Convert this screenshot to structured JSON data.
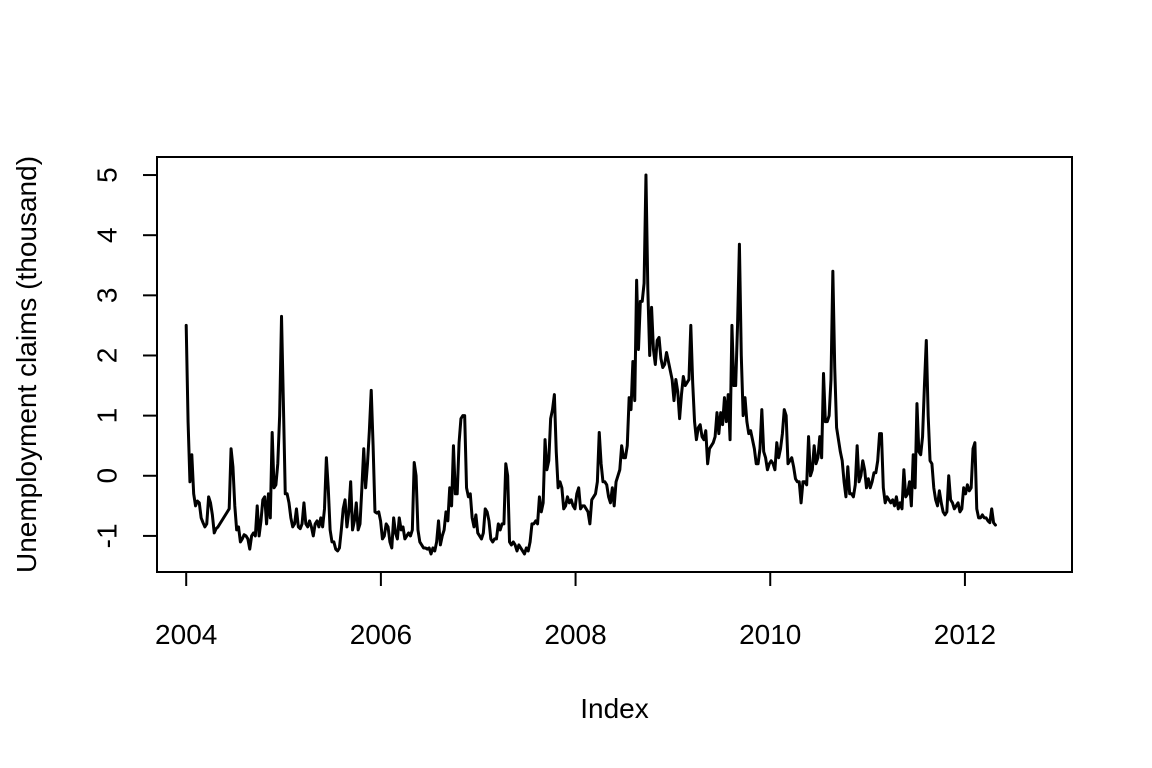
{
  "chart_data": {
    "type": "line",
    "title": "",
    "xlabel": "Index",
    "ylabel": "Unemployment claims (thousand)",
    "xlim": [
      2003.7,
      2013.1
    ],
    "ylim": [
      -1.6,
      5.3
    ],
    "x_ticks": [
      2004,
      2006,
      2008,
      2010,
      2012
    ],
    "x_tick_labels": [
      "2004",
      "2006",
      "2008",
      "2010",
      "2012"
    ],
    "y_ticks": [
      -1,
      0,
      1,
      2,
      3,
      4,
      5
    ],
    "y_tick_labels": [
      "-1",
      "0",
      "1",
      "2",
      "3",
      "4",
      "5"
    ],
    "grid": false,
    "line_color": "#000000",
    "series": [
      {
        "x_start": 2004.0,
        "x_step": 0.0192,
        "values": [
          2.5,
          0.9,
          -0.1,
          0.35,
          -0.3,
          -0.5,
          -0.42,
          -0.45,
          -0.7,
          -0.78,
          -0.85,
          -0.8,
          -0.35,
          -0.45,
          -0.65,
          -0.95,
          -0.88,
          -0.85,
          -0.8,
          -0.75,
          -0.7,
          -0.65,
          -0.6,
          -0.55,
          0.45,
          0.15,
          -0.5,
          -0.9,
          -0.85,
          -1.1,
          -1.05,
          -0.98,
          -1.0,
          -1.05,
          -1.22,
          -1.0,
          -0.95,
          -1.0,
          -0.5,
          -1.0,
          -0.75,
          -0.4,
          -0.35,
          -0.8,
          -0.3,
          -0.7,
          0.72,
          -0.2,
          -0.15,
          0.2,
          1.0,
          2.65,
          1.2,
          -0.3,
          -0.3,
          -0.45,
          -0.7,
          -0.85,
          -0.8,
          -0.55,
          -0.85,
          -0.88,
          -0.8,
          -0.45,
          -0.8,
          -0.85,
          -0.75,
          -0.85,
          -1.0,
          -0.8,
          -0.75,
          -0.85,
          -0.7,
          -0.85,
          -0.55,
          0.3,
          -0.2,
          -0.9,
          -1.1,
          -1.1,
          -1.22,
          -1.25,
          -1.2,
          -0.9,
          -0.55,
          -0.4,
          -0.85,
          -0.6,
          -0.1,
          -0.9,
          -0.75,
          -0.45,
          -0.9,
          -0.8,
          -0.2,
          0.45,
          -0.2,
          0.2,
          0.75,
          1.42,
          0.5,
          -0.6,
          -0.62,
          -0.6,
          -0.75,
          -1.05,
          -1.0,
          -0.8,
          -0.85,
          -1.1,
          -1.2,
          -0.7,
          -0.95,
          -1.05,
          -0.7,
          -0.9,
          -0.85,
          -1.05,
          -1.0,
          -0.95,
          -1.0,
          -0.9,
          0.22,
          0.0,
          -0.9,
          -1.1,
          -1.15,
          -1.2,
          -1.2,
          -1.22,
          -1.2,
          -1.3,
          -1.2,
          -1.25,
          -1.1,
          -0.75,
          -1.15,
          -1.0,
          -0.9,
          -0.6,
          -0.75,
          -0.2,
          -0.5,
          0.5,
          -0.3,
          -0.3,
          0.55,
          0.95,
          1.0,
          1.0,
          -0.2,
          -0.35,
          -0.3,
          -0.7,
          -0.85,
          -0.65,
          -0.95,
          -1.0,
          -1.05,
          -0.95,
          -0.55,
          -0.6,
          -0.75,
          -1.05,
          -1.1,
          -1.05,
          -1.05,
          -0.8,
          -0.9,
          -0.8,
          -0.8,
          0.2,
          0.0,
          -1.1,
          -1.15,
          -1.1,
          -1.15,
          -1.25,
          -1.15,
          -1.2,
          -1.25,
          -1.3,
          -1.2,
          -1.25,
          -1.1,
          -0.8,
          -0.8,
          -0.75,
          -0.8,
          -0.35,
          -0.6,
          -0.45,
          0.6,
          0.1,
          0.25,
          0.95,
          1.1,
          1.35,
          0.4,
          -0.2,
          -0.1,
          -0.2,
          -0.55,
          -0.5,
          -0.35,
          -0.45,
          -0.4,
          -0.5,
          -0.55,
          -0.3,
          -0.2,
          -0.55,
          -0.5,
          -0.5,
          -0.55,
          -0.6,
          -0.8,
          -0.4,
          -0.35,
          -0.3,
          -0.1,
          0.72,
          0.2,
          -0.1,
          -0.1,
          -0.15,
          -0.35,
          -0.45,
          -0.2,
          -0.5,
          -0.1,
          0.0,
          0.1,
          0.5,
          0.3,
          0.3,
          0.5,
          1.3,
          1.1,
          1.9,
          1.25,
          3.25,
          2.1,
          2.9,
          2.9,
          3.2,
          5.0,
          3.1,
          2.0,
          2.8,
          2.1,
          1.85,
          2.25,
          2.3,
          1.95,
          1.8,
          1.85,
          2.05,
          1.9,
          1.75,
          1.6,
          1.25,
          1.6,
          1.4,
          0.95,
          1.35,
          1.65,
          1.5,
          1.55,
          1.6,
          2.5,
          1.55,
          0.9,
          0.6,
          0.8,
          0.85,
          0.65,
          0.6,
          0.75,
          0.2,
          0.45,
          0.5,
          0.55,
          0.65,
          1.05,
          0.7,
          1.05,
          0.85,
          1.3,
          0.9,
          1.35,
          0.6,
          2.5,
          1.5,
          1.5,
          2.5,
          3.85,
          2.0,
          1.0,
          1.3,
          0.9,
          0.7,
          0.75,
          0.6,
          0.45,
          0.2,
          0.2,
          0.45,
          1.1,
          0.4,
          0.3,
          0.1,
          0.2,
          0.25,
          0.2,
          0.1,
          0.55,
          0.3,
          0.45,
          0.7,
          1.1,
          1.0,
          0.2,
          0.25,
          0.3,
          0.15,
          -0.05,
          -0.1,
          -0.1,
          -0.45,
          -0.1,
          -0.1,
          -0.15,
          0.65,
          0.0,
          0.1,
          0.5,
          0.2,
          0.3,
          0.65,
          0.3,
          1.7,
          0.9,
          0.9,
          1.0,
          1.6,
          3.4,
          1.8,
          0.8,
          0.6,
          0.4,
          0.25,
          -0.1,
          -0.35,
          0.15,
          -0.3,
          -0.3,
          -0.35,
          -0.15,
          0.5,
          -0.1,
          0.0,
          0.25,
          0.1,
          -0.2,
          -0.05,
          -0.2,
          -0.1,
          0.05,
          0.05,
          0.25,
          0.7,
          0.7,
          -0.2,
          -0.45,
          -0.35,
          -0.4,
          -0.45,
          -0.4,
          -0.5,
          -0.35,
          -0.55,
          -0.45,
          -0.55,
          0.1,
          -0.35,
          -0.3,
          -0.1,
          -0.5,
          0.35,
          -0.2,
          1.2,
          0.4,
          0.35,
          0.65,
          1.5,
          2.25,
          1.0,
          0.25,
          0.2,
          -0.2,
          -0.4,
          -0.5,
          -0.25,
          -0.45,
          -0.6,
          -0.65,
          -0.6,
          0.0,
          -0.4,
          -0.45,
          -0.55,
          -0.5,
          -0.45,
          -0.6,
          -0.55,
          -0.2,
          -0.3,
          -0.15,
          -0.25,
          -0.2,
          0.45,
          0.55,
          -0.55,
          -0.7,
          -0.7,
          -0.65,
          -0.7,
          -0.7,
          -0.75,
          -0.78,
          -0.55,
          -0.78,
          -0.82
        ]
      }
    ]
  }
}
